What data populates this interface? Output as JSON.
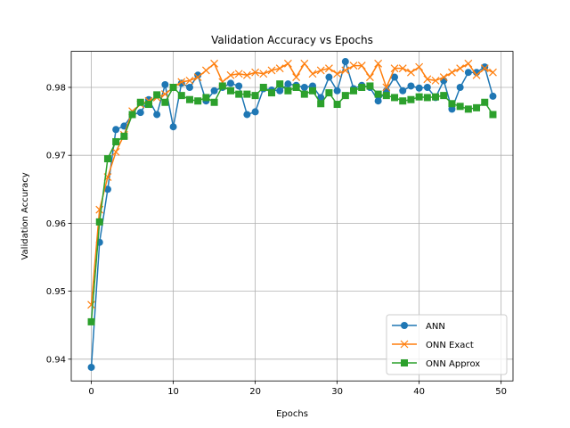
{
  "chart_data": {
    "type": "line",
    "title": "Validation Accuracy vs Epochs",
    "xlabel": "Epochs",
    "ylabel": "Validation Accuracy",
    "xlim": [
      -2.45,
      51.45
    ],
    "ylim": [
      0.9368,
      0.9853
    ],
    "xticks": [
      0,
      10,
      20,
      30,
      40,
      50
    ],
    "yticks": [
      0.94,
      0.95,
      0.96,
      0.97,
      0.98
    ],
    "xtick_labels": [
      "0",
      "10",
      "20",
      "30",
      "40",
      "50"
    ],
    "ytick_labels": [
      "0.94",
      "0.95",
      "0.96",
      "0.97",
      "0.98"
    ],
    "grid": true,
    "legend_position": "lower-right",
    "x": [
      0,
      1,
      2,
      3,
      4,
      5,
      6,
      7,
      8,
      9,
      10,
      11,
      12,
      13,
      14,
      15,
      16,
      17,
      18,
      19,
      20,
      21,
      22,
      23,
      24,
      25,
      26,
      27,
      28,
      29,
      30,
      31,
      32,
      33,
      34,
      35,
      36,
      37,
      38,
      39,
      40,
      41,
      42,
      43,
      44,
      45,
      46,
      47,
      48,
      49
    ],
    "series": [
      {
        "name": "ANN",
        "color": "#1f77b4",
        "marker": "circle",
        "values": [
          0.9388,
          0.9572,
          0.965,
          0.9738,
          0.9743,
          0.976,
          0.9763,
          0.9782,
          0.976,
          0.9804,
          0.9742,
          0.9806,
          0.98,
          0.9818,
          0.978,
          0.9795,
          0.98,
          0.9806,
          0.9802,
          0.976,
          0.9764,
          0.9798,
          0.9796,
          0.9795,
          0.9805,
          0.9803,
          0.98,
          0.9802,
          0.9785,
          0.9815,
          0.9795,
          0.9838,
          0.9798,
          0.9803,
          0.98,
          0.978,
          0.9795,
          0.9815,
          0.9795,
          0.9802,
          0.9799,
          0.98,
          0.9785,
          0.981,
          0.9768,
          0.98,
          0.9822,
          0.9822,
          0.983,
          0.9787
        ]
      },
      {
        "name": "ONN Exact",
        "color": "#ff7f0e",
        "marker": "x",
        "values": [
          0.948,
          0.962,
          0.9668,
          0.9705,
          0.973,
          0.9765,
          0.9775,
          0.978,
          0.9785,
          0.979,
          0.98,
          0.9808,
          0.981,
          0.9815,
          0.9825,
          0.9835,
          0.9808,
          0.9818,
          0.982,
          0.9818,
          0.9822,
          0.982,
          0.9825,
          0.9828,
          0.9835,
          0.9815,
          0.9835,
          0.982,
          0.9825,
          0.9828,
          0.982,
          0.9825,
          0.9832,
          0.9832,
          0.9815,
          0.9835,
          0.98,
          0.9828,
          0.9828,
          0.9822,
          0.983,
          0.9812,
          0.981,
          0.9815,
          0.9822,
          0.9828,
          0.9835,
          0.9818,
          0.9828,
          0.9822
        ]
      },
      {
        "name": "ONN Approx",
        "color": "#2ca02c",
        "marker": "square",
        "values": [
          0.9455,
          0.9602,
          0.9695,
          0.972,
          0.9728,
          0.976,
          0.9778,
          0.9775,
          0.9789,
          0.9778,
          0.98,
          0.9788,
          0.9782,
          0.978,
          0.9785,
          0.9778,
          0.9802,
          0.9795,
          0.979,
          0.979,
          0.9788,
          0.98,
          0.9792,
          0.9805,
          0.9795,
          0.98,
          0.979,
          0.9795,
          0.9776,
          0.9792,
          0.9775,
          0.9788,
          0.9795,
          0.98,
          0.9802,
          0.979,
          0.9788,
          0.9785,
          0.978,
          0.9782,
          0.9786,
          0.9785,
          0.9786,
          0.9788,
          0.9776,
          0.9772,
          0.9768,
          0.977,
          0.9778,
          0.976
        ]
      }
    ]
  }
}
